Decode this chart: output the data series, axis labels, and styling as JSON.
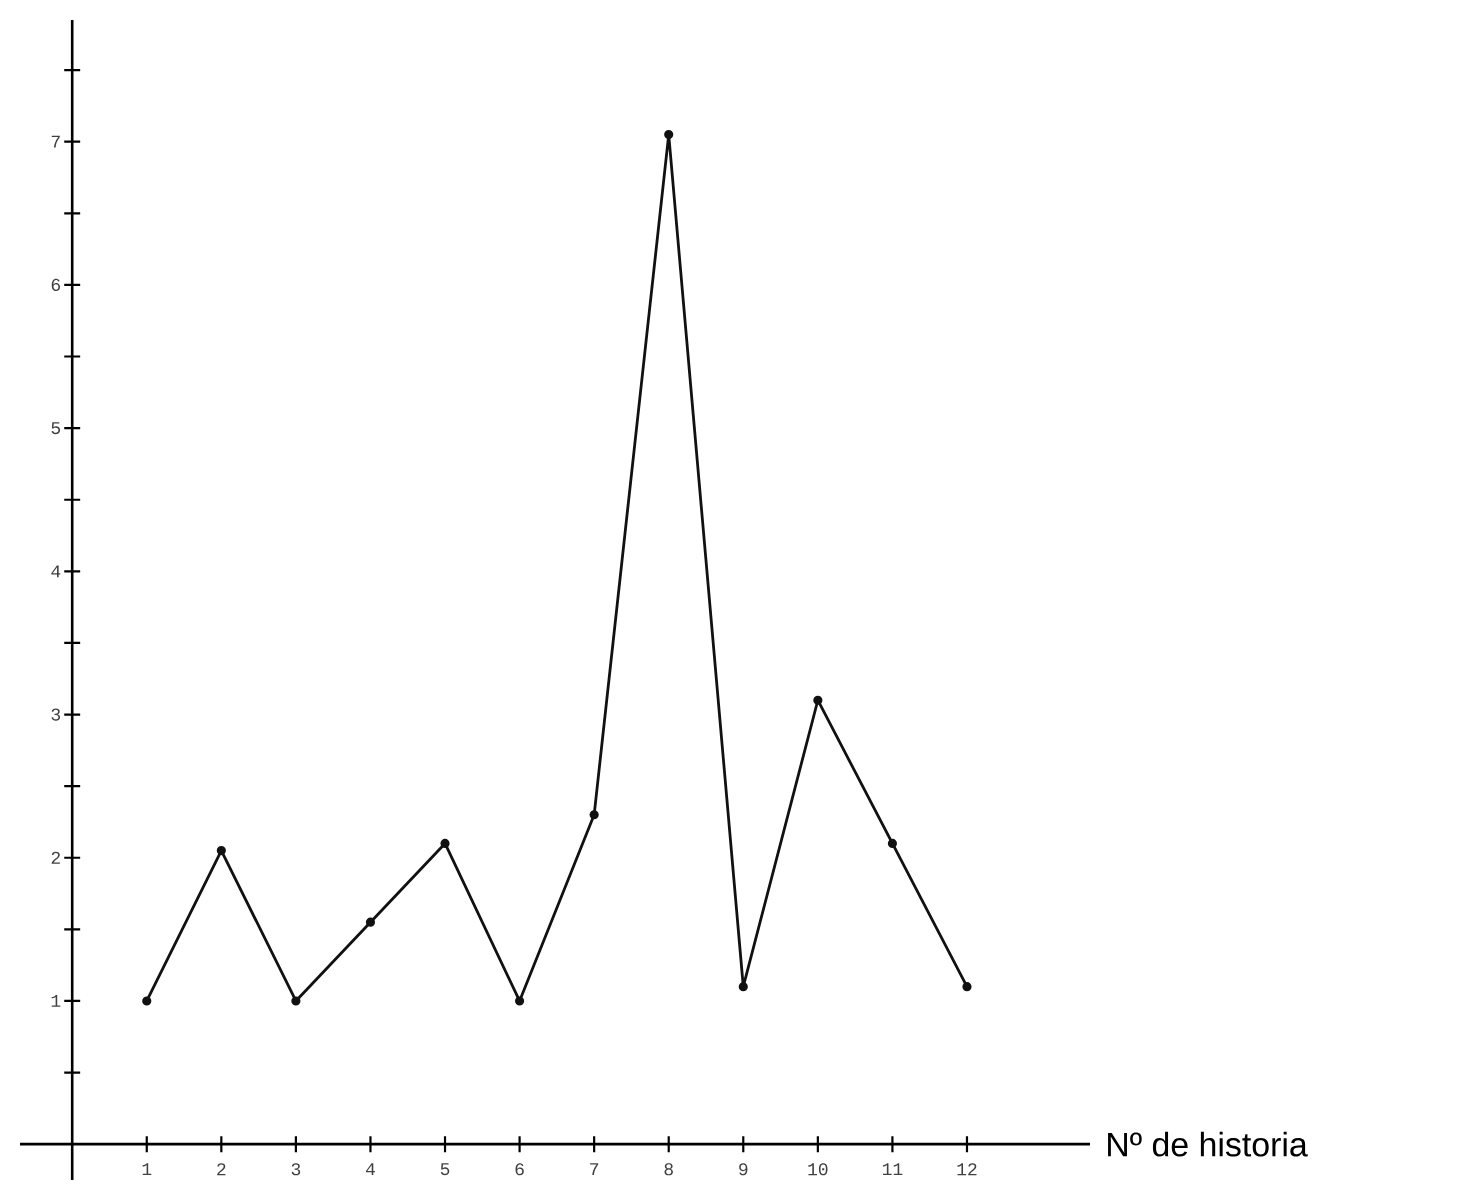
{
  "chart_data": {
    "type": "line",
    "xlabel": "Nº de historia",
    "x": [
      1,
      2,
      3,
      4,
      5,
      6,
      7,
      8,
      9,
      10,
      11,
      12
    ],
    "series": [
      {
        "color": "#111111",
        "values": [
          1,
          2.05,
          1,
          1.55,
          2.1,
          1,
          2.3,
          7.05,
          1.1,
          3.1,
          2.1,
          1.1
        ]
      }
    ],
    "xlim": [
      -0.7,
      13.65
    ],
    "ylim": [
      -0.25,
      7.85
    ],
    "xticks": [
      1,
      2,
      3,
      4,
      5,
      6,
      7,
      8,
      9,
      10,
      11,
      12
    ],
    "yticks": [
      {
        "value": 0.5,
        "label": null
      },
      1,
      {
        "value": 1.5,
        "label": null
      },
      2,
      {
        "value": 2.5,
        "label": null
      },
      3,
      {
        "value": 3.5,
        "label": null
      },
      4,
      {
        "value": 4.5,
        "label": null
      },
      5,
      {
        "value": 5.5,
        "label": null
      },
      6,
      {
        "value": 6.5,
        "label": null
      },
      7,
      {
        "value": 7.5,
        "label": null
      }
    ],
    "grid": false,
    "marker": "circle",
    "line_style": "solid"
  }
}
